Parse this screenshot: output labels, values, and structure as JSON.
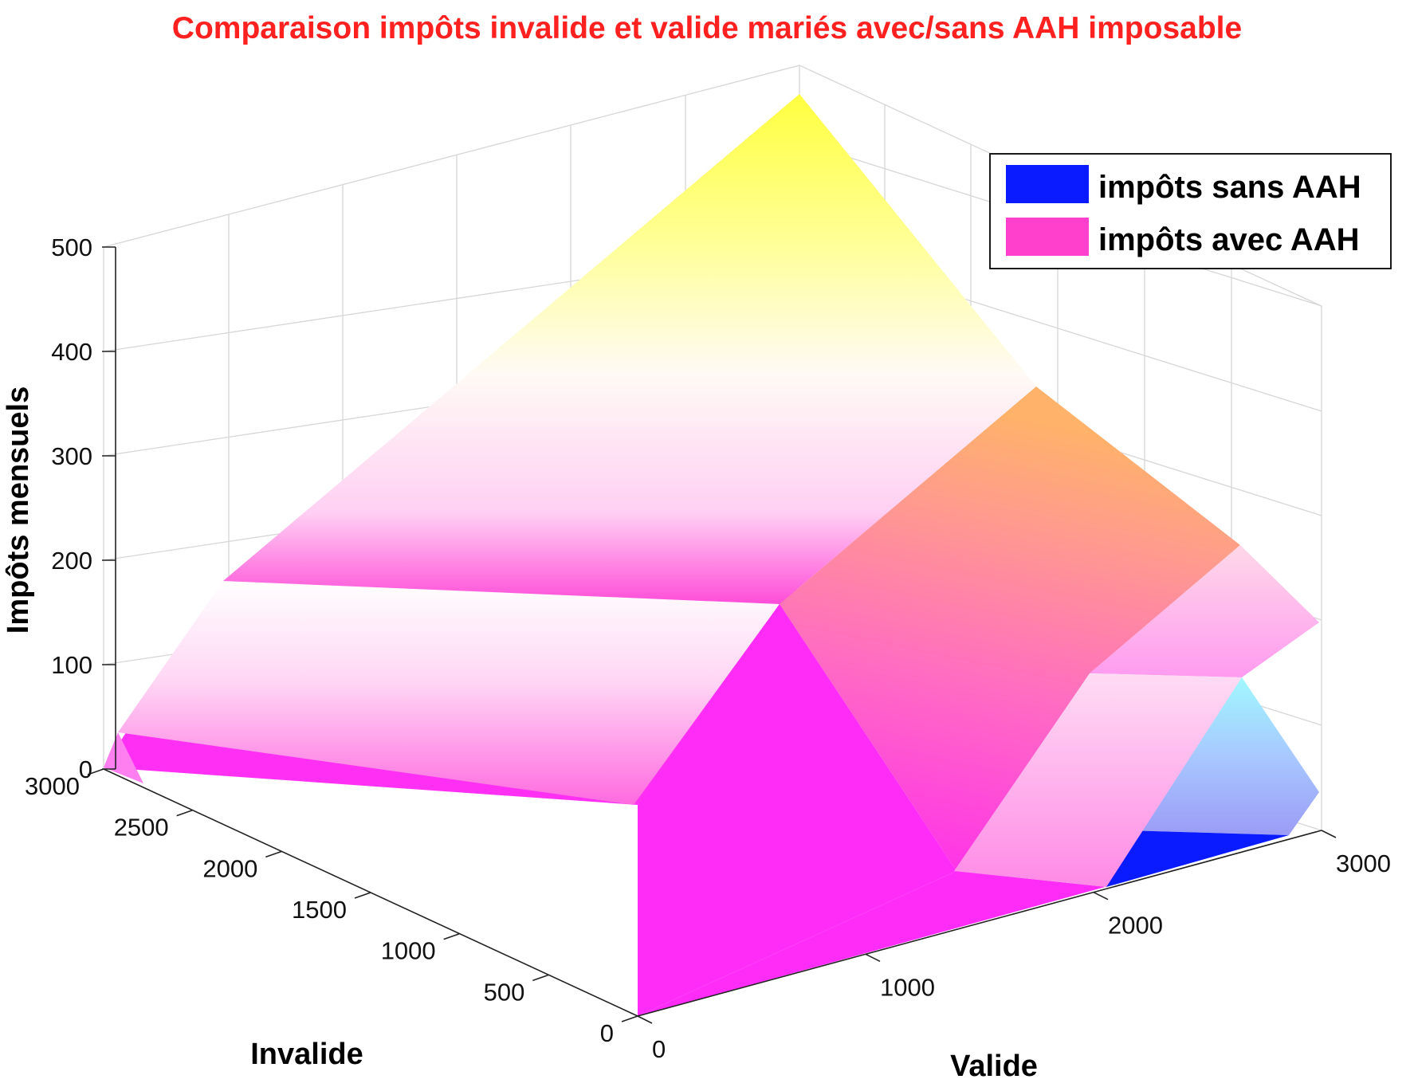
{
  "chart_data": {
    "type": "surface3d",
    "title": "Comparaison impôts invalide et valide mariés avec/sans AAH imposable",
    "title_color": "#ff2020",
    "xlabel": "Valide",
    "ylabel": "Invalide",
    "zlabel": "Impôts mensuels",
    "xlim": [
      0,
      3000
    ],
    "ylim": [
      0,
      3000
    ],
    "zlim": [
      0,
      500
    ],
    "x_ticks": [
      "0",
      "1000",
      "2000",
      "3000"
    ],
    "y_ticks": [
      "0",
      "500",
      "1000",
      "1500",
      "2000",
      "2500",
      "3000"
    ],
    "z_ticks": [
      "0",
      "100",
      "200",
      "300",
      "400",
      "500"
    ],
    "grid": true,
    "legend": {
      "position": "top-right",
      "entries": [
        {
          "label": "impôts sans AAH",
          "color": "#0a1cff"
        },
        {
          "label": "impôts avec AAH",
          "color": "#ff40cc"
        }
      ]
    },
    "series": [
      {
        "name": "impôts sans AAH",
        "color": "#0a1cff",
        "vertices": [
          {
            "x": 2100,
            "y": 0,
            "z": 0
          },
          {
            "x": 3000,
            "y": 0,
            "z": 0
          },
          {
            "x": 3000,
            "y": 300,
            "z": 50
          },
          {
            "x": 3000,
            "y": 0,
            "z": 0
          },
          {
            "x": 2500,
            "y": 500,
            "z": 105
          }
        ]
      },
      {
        "name": "impôts avec AAH",
        "color": "#ff40cc",
        "vertices": [
          {
            "x": 0,
            "y": 0,
            "z": 0
          },
          {
            "x": 0,
            "y": 3000,
            "z": 0
          },
          {
            "x": 0,
            "y": 3000,
            "z": 35
          },
          {
            "x": 0,
            "y": 2500,
            "z": 180
          },
          {
            "x": 3000,
            "y": 3000,
            "z": 500
          },
          {
            "x": 3000,
            "y": 1900,
            "z": 350
          },
          {
            "x": 3000,
            "y": 1100,
            "z": 180
          },
          {
            "x": 3000,
            "y": 500,
            "z": 140
          },
          {
            "x": 2100,
            "y": 0,
            "z": 0
          }
        ]
      }
    ]
  }
}
